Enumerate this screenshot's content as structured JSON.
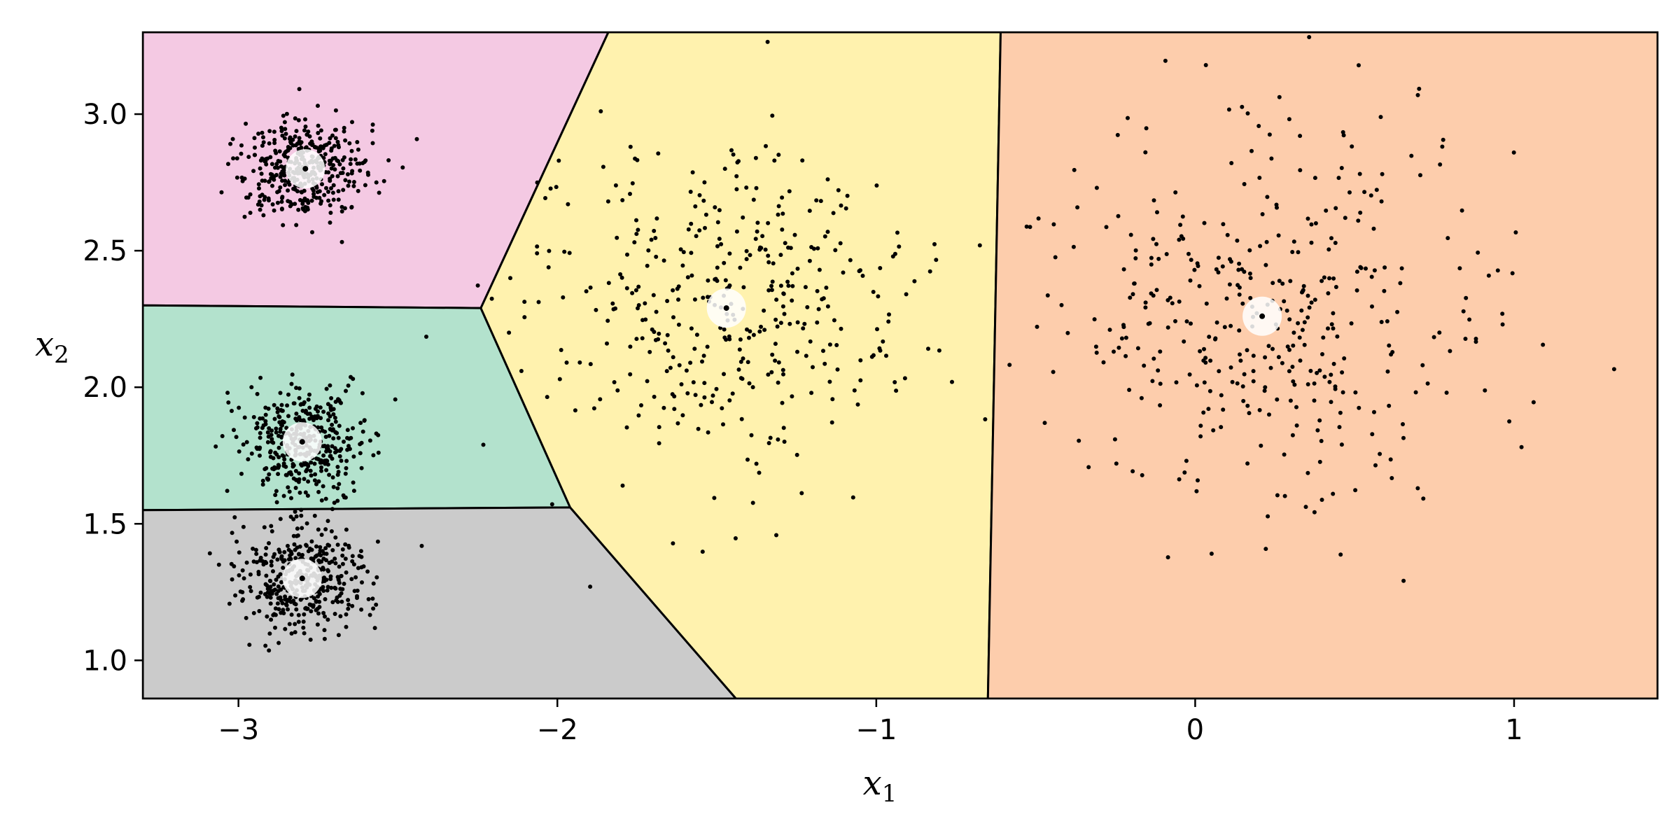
{
  "chart_data": {
    "type": "scatter",
    "title": "",
    "xlabel": {
      "main": "x",
      "sub": "1"
    },
    "ylabel": {
      "main": "x",
      "sub": "2"
    },
    "xlim": [
      -3.3,
      1.45
    ],
    "ylim": [
      0.86,
      3.3
    ],
    "grid": false,
    "x_ticks": [
      {
        "value": -3,
        "label": "−3"
      },
      {
        "value": -2,
        "label": "−2"
      },
      {
        "value": -1,
        "label": "−1"
      },
      {
        "value": 0,
        "label": "0"
      },
      {
        "value": 1,
        "label": "1"
      }
    ],
    "y_ticks": [
      {
        "value": 1.0,
        "label": "1.0"
      },
      {
        "value": 1.5,
        "label": "1.5"
      },
      {
        "value": 2.0,
        "label": "2.0"
      },
      {
        "value": 2.5,
        "label": "2.5"
      },
      {
        "value": 3.0,
        "label": "3.0"
      }
    ],
    "regions": [
      {
        "cluster": "top-left",
        "color": "#f4c9e3",
        "polygon": [
          [
            -3.3,
            3.3
          ],
          [
            -1.84,
            3.3
          ],
          [
            -2.24,
            2.29
          ],
          [
            -3.3,
            2.3
          ]
        ]
      },
      {
        "cluster": "middle-left",
        "color": "#b3e2cd",
        "polygon": [
          [
            -3.3,
            2.3
          ],
          [
            -2.24,
            2.29
          ],
          [
            -1.96,
            1.56
          ],
          [
            -3.3,
            1.55
          ]
        ]
      },
      {
        "cluster": "bottom-left",
        "color": "#cbcbcb",
        "polygon": [
          [
            -3.3,
            1.55
          ],
          [
            -1.96,
            1.56
          ],
          [
            -1.44,
            0.86
          ],
          [
            -3.3,
            0.86
          ]
        ]
      },
      {
        "cluster": "center",
        "color": "#fff2ae",
        "polygon": [
          [
            -1.84,
            3.3
          ],
          [
            -0.61,
            3.3
          ],
          [
            -0.65,
            0.86
          ],
          [
            -1.44,
            0.86
          ],
          [
            -1.96,
            1.56
          ],
          [
            -2.24,
            2.29
          ]
        ]
      },
      {
        "cluster": "right",
        "color": "#fdcdac",
        "polygon": [
          [
            -0.61,
            3.3
          ],
          [
            1.45,
            3.3
          ],
          [
            1.45,
            0.86
          ],
          [
            -0.65,
            0.86
          ]
        ]
      }
    ],
    "centroids": [
      {
        "x": -2.79,
        "y": 2.8
      },
      {
        "x": -2.8,
        "y": 1.8
      },
      {
        "x": -2.8,
        "y": 1.3
      },
      {
        "x": -1.47,
        "y": 2.29
      },
      {
        "x": 0.21,
        "y": 2.26
      }
    ],
    "clusters": [
      {
        "cx": -2.79,
        "cy": 2.8,
        "sx": 0.1,
        "sy": 0.1,
        "n": 400
      },
      {
        "cx": -2.8,
        "cy": 1.8,
        "sx": 0.1,
        "sy": 0.1,
        "n": 400
      },
      {
        "cx": -2.8,
        "cy": 1.3,
        "sx": 0.1,
        "sy": 0.1,
        "n": 400
      },
      {
        "cx": -1.47,
        "cy": 2.29,
        "sx": 0.3,
        "sy": 0.3,
        "n": 400
      },
      {
        "cx": 0.21,
        "cy": 2.26,
        "sx": 0.35,
        "sy": 0.35,
        "n": 400
      }
    ],
    "colors": {
      "point": "#000000",
      "boundary": "#000000",
      "centroid_outer": "#ffffff",
      "centroid_inner": "#000000"
    }
  }
}
